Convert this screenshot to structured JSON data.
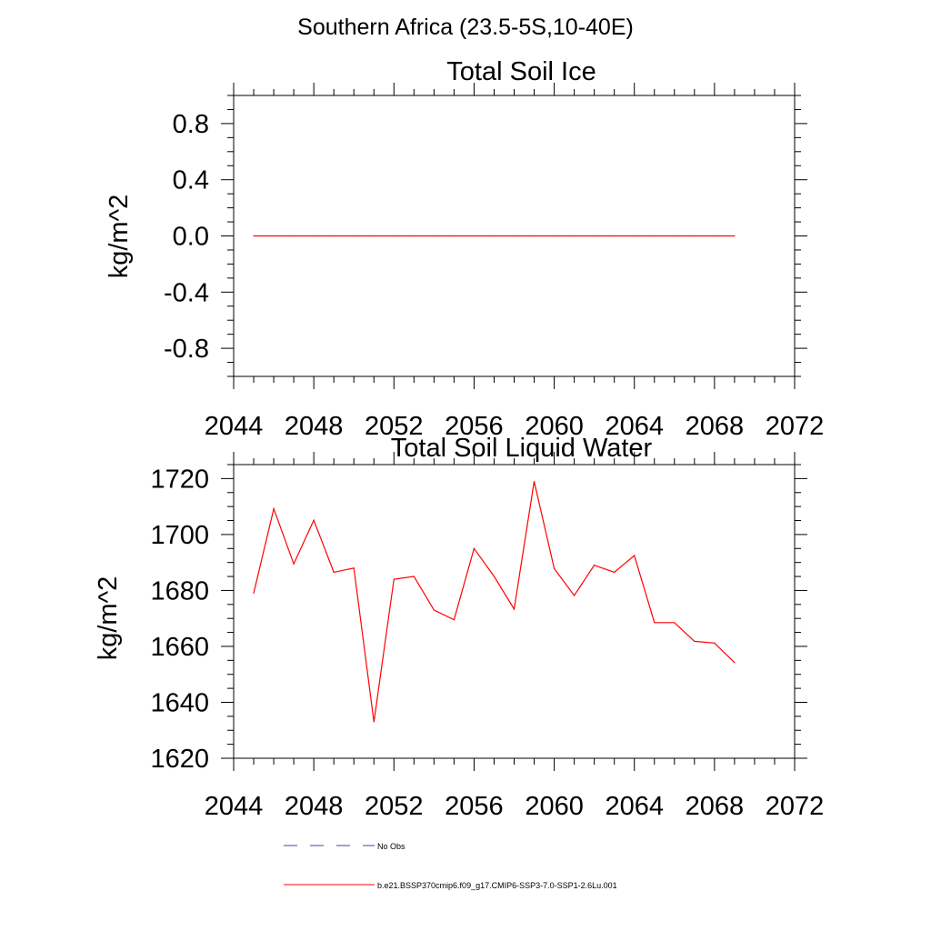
{
  "page": {
    "title": "Southern Africa (23.5-5S,10-40E)"
  },
  "colors": {
    "series": "#ff0000",
    "no_obs": "#3b4a9a",
    "axis": "#000000"
  },
  "chart_data": [
    {
      "type": "line",
      "title": "Total Soil Ice",
      "xlabel": "",
      "ylabel": "kg/m^2",
      "xlim": [
        2044,
        2072
      ],
      "ylim": [
        -1.0,
        1.0
      ],
      "x_ticks": [
        2044,
        2048,
        2052,
        2056,
        2060,
        2064,
        2068,
        2072
      ],
      "x_tick_labels": [
        "2044",
        "2048",
        "2052",
        "2056",
        "2060",
        "2064",
        "2068",
        "2072"
      ],
      "y_ticks": [
        0.8,
        0.4,
        0.0,
        -0.4,
        -0.8
      ],
      "y_tick_labels": [
        "0.8",
        "0.4",
        "0.0",
        "-0.4",
        "-0.8"
      ],
      "grid": false,
      "series": [
        {
          "name": "b.e21.BSSP370cmip6.f09_g17.CMIP6-SSP3-7.0-SSP1-2.6Lu.001",
          "x": [
            2045,
            2046,
            2047,
            2048,
            2049,
            2050,
            2051,
            2052,
            2053,
            2054,
            2055,
            2056,
            2057,
            2058,
            2059,
            2060,
            2061,
            2062,
            2063,
            2064,
            2065,
            2066,
            2067,
            2068,
            2069
          ],
          "y": [
            0,
            0,
            0,
            0,
            0,
            0,
            0,
            0,
            0,
            0,
            0,
            0,
            0,
            0,
            0,
            0,
            0,
            0,
            0,
            0,
            0,
            0,
            0,
            0,
            0
          ]
        }
      ]
    },
    {
      "type": "line",
      "title": "Total Soil Liquid Water",
      "xlabel": "",
      "ylabel": "kg/m^2",
      "xlim": [
        2044,
        2072
      ],
      "ylim": [
        1620,
        1725
      ],
      "x_ticks": [
        2044,
        2048,
        2052,
        2056,
        2060,
        2064,
        2068,
        2072
      ],
      "x_tick_labels": [
        "2044",
        "2048",
        "2052",
        "2056",
        "2060",
        "2064",
        "2068",
        "2072"
      ],
      "y_ticks": [
        1720,
        1700,
        1680,
        1660,
        1640,
        1620
      ],
      "y_tick_labels": [
        "1720",
        "1700",
        "1680",
        "1660",
        "1640",
        "1620"
      ],
      "grid": false,
      "series": [
        {
          "name": "b.e21.BSSP370cmip6.f09_g17.CMIP6-SSP3-7.0-SSP1-2.6Lu.001",
          "x": [
            2045,
            2046,
            2047,
            2048,
            2049,
            2050,
            2051,
            2052,
            2053,
            2054,
            2055,
            2056,
            2057,
            2058,
            2059,
            2060,
            2061,
            2062,
            2063,
            2064,
            2065,
            2066,
            2067,
            2068,
            2069
          ],
          "y": [
            1679,
            1709.2,
            1689.5,
            1705.1,
            1686.5,
            1688,
            1633,
            1684,
            1685,
            1673,
            1669.5,
            1695,
            1685,
            1673.3,
            1719,
            1687.8,
            1678.2,
            1689,
            1686.5,
            1692.5,
            1668.5,
            1668.5,
            1661.8,
            1661.2,
            1654.2
          ]
        }
      ]
    }
  ],
  "legend": {
    "items": [
      {
        "label": "No Obs",
        "style": "dashed"
      },
      {
        "label": "b.e21.BSSP370cmip6.f09_g17.CMIP6-SSP3-7.0-SSP1-2.6Lu.001",
        "style": "solid"
      }
    ]
  }
}
